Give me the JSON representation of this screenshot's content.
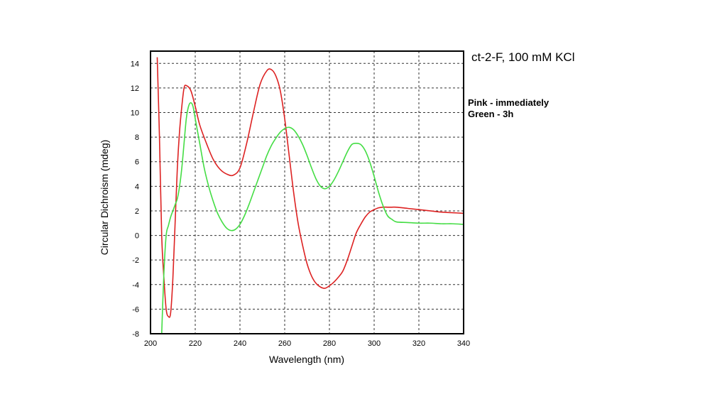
{
  "annotation": {
    "title": "ct-2-F, 100 mM KCl",
    "legend_line_1": "Pink - immediately",
    "legend_line_2": "Green - 3h"
  },
  "chart_data": {
    "type": "line",
    "title": "",
    "xlabel": "Wavelength (nm)",
    "ylabel": "Circular Dichroism (mdeg)",
    "xlim": [
      200,
      340
    ],
    "ylim": [
      -8,
      15
    ],
    "x_ticks": [
      200,
      220,
      240,
      260,
      280,
      300,
      320,
      340
    ],
    "x_tick_labels": [
      "200",
      "220",
      "240",
      "260",
      "280",
      "300",
      "320",
      "340"
    ],
    "y_ticks": [
      -8,
      -6,
      -4,
      -2,
      0,
      2,
      4,
      6,
      8,
      10,
      12,
      14
    ],
    "y_tick_labels": [
      "-8",
      "-6",
      "-4",
      "-2",
      "0",
      "2",
      "4",
      "6",
      "8",
      "10",
      "12",
      "14"
    ],
    "grid": true,
    "series": [
      {
        "color": "#dd2222",
        "x": [
          203,
          204,
          205,
          206,
          207,
          208,
          209,
          210,
          211,
          212,
          213,
          214,
          215,
          216,
          218,
          220,
          222,
          225,
          228,
          231,
          234,
          237,
          240,
          243,
          246,
          249,
          252,
          254,
          256,
          258,
          260,
          262,
          264,
          266,
          268,
          270,
          272,
          274,
          276,
          278,
          280,
          282,
          284,
          286,
          288,
          290,
          292,
          294,
          296,
          298,
          300,
          302,
          304,
          306,
          308,
          310,
          315,
          320,
          325,
          330,
          335,
          340
        ],
        "y": [
          14.5,
          8,
          0,
          -3.5,
          -6,
          -6.6,
          -6.3,
          -3.5,
          1,
          5.5,
          8.5,
          10.5,
          12,
          12.2,
          11.8,
          10.5,
          9,
          7.5,
          6.2,
          5.4,
          5,
          4.9,
          5.5,
          7.5,
          10,
          12.3,
          13.4,
          13.5,
          13,
          11.8,
          9.5,
          6.5,
          3.5,
          1,
          -0.8,
          -2.3,
          -3.3,
          -3.9,
          -4.2,
          -4.3,
          -4.1,
          -3.8,
          -3.4,
          -2.9,
          -2,
          -0.9,
          0.2,
          0.9,
          1.5,
          1.9,
          2.1,
          2.25,
          2.3,
          2.3,
          2.3,
          2.3,
          2.2,
          2.1,
          2.0,
          1.9,
          1.85,
          1.8
        ]
      },
      {
        "color": "#44dd44",
        "x": [
          205,
          206,
          207,
          208,
          209,
          210,
          211,
          212,
          213,
          214,
          215,
          216,
          217,
          218,
          219,
          220,
          222,
          224,
          226,
          228,
          230,
          232,
          234,
          236,
          238,
          240,
          242,
          244,
          246,
          248,
          250,
          252,
          254,
          256,
          258,
          260,
          262,
          264,
          266,
          268,
          270,
          272,
          274,
          276,
          278,
          280,
          282,
          284,
          286,
          288,
          290,
          292,
          294,
          296,
          298,
          300,
          302,
          304,
          306,
          308,
          310,
          315,
          320,
          325,
          330,
          335,
          340
        ],
        "y": [
          -8,
          -3,
          0,
          0.8,
          1.5,
          2,
          2.5,
          3,
          4,
          5.5,
          7.5,
          9.5,
          10.5,
          10.8,
          10.5,
          9.5,
          7.5,
          5.5,
          4,
          2.8,
          1.8,
          1.1,
          0.6,
          0.4,
          0.5,
          0.9,
          1.6,
          2.5,
          3.5,
          4.5,
          5.5,
          6.5,
          7.3,
          7.9,
          8.4,
          8.7,
          8.8,
          8.6,
          8.1,
          7.4,
          6.5,
          5.5,
          4.6,
          4,
          3.8,
          4,
          4.5,
          5.2,
          6,
          6.8,
          7.4,
          7.5,
          7.4,
          6.9,
          6,
          4.8,
          3.5,
          2.4,
          1.6,
          1.3,
          1.1,
          1.05,
          1.0,
          1.0,
          0.95,
          0.95,
          0.9
        ]
      }
    ]
  }
}
